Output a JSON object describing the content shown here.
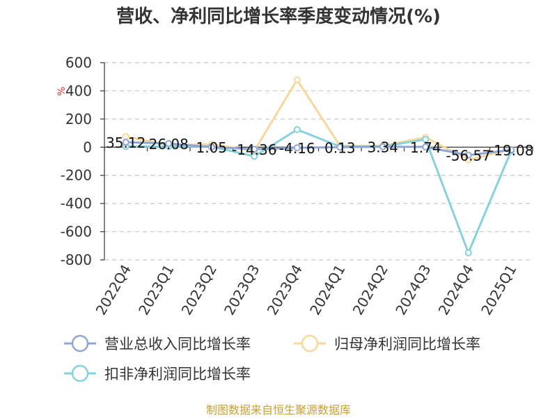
{
  "chart_data": {
    "type": "line",
    "title": "营收、净利同比增长率季度变动情况(%)",
    "ylabel": "%",
    "categories": [
      "2022Q4",
      "2023Q1",
      "2023Q2",
      "2023Q3",
      "2023Q4",
      "2024Q1",
      "2024Q2",
      "2024Q3",
      "2024Q4",
      "2025Q1"
    ],
    "ylim": [
      -800,
      600
    ],
    "yticks": [
      "600",
      "400",
      "200",
      "0",
      "-200",
      "-400",
      "-600",
      "-800"
    ],
    "yticks_values": [
      600,
      400,
      200,
      0,
      -200,
      -400,
      -600,
      -800
    ],
    "grid": true,
    "legend_position": "bottom",
    "series": [
      {
        "name": "营业总收入同比增长率",
        "color": "#8fa6d6",
        "values": [
          35.12,
          26.08,
          1.05,
          -14.36,
          -4.16,
          0.13,
          3.34,
          1.74,
          -56.57,
          -19.08
        ],
        "labels": [
          "35.12",
          "26.08",
          "1.05",
          "-14.36",
          "-4.16",
          "0.13",
          "3.34",
          "1.74",
          "-56.57",
          "-19.08"
        ]
      },
      {
        "name": "归母净利润同比增长率",
        "color": "#f7d89c",
        "values": [
          75,
          15,
          20,
          -25,
          478,
          10,
          10,
          70,
          -90,
          -15
        ]
      },
      {
        "name": "扣非净利润同比增长率",
        "color": "#86d2dc",
        "values": [
          5,
          5,
          5,
          -65,
          125,
          5,
          5,
          55,
          -750,
          -25
        ]
      }
    ]
  },
  "footer": {
    "source": "制图数据来自恒生聚源数据库"
  }
}
